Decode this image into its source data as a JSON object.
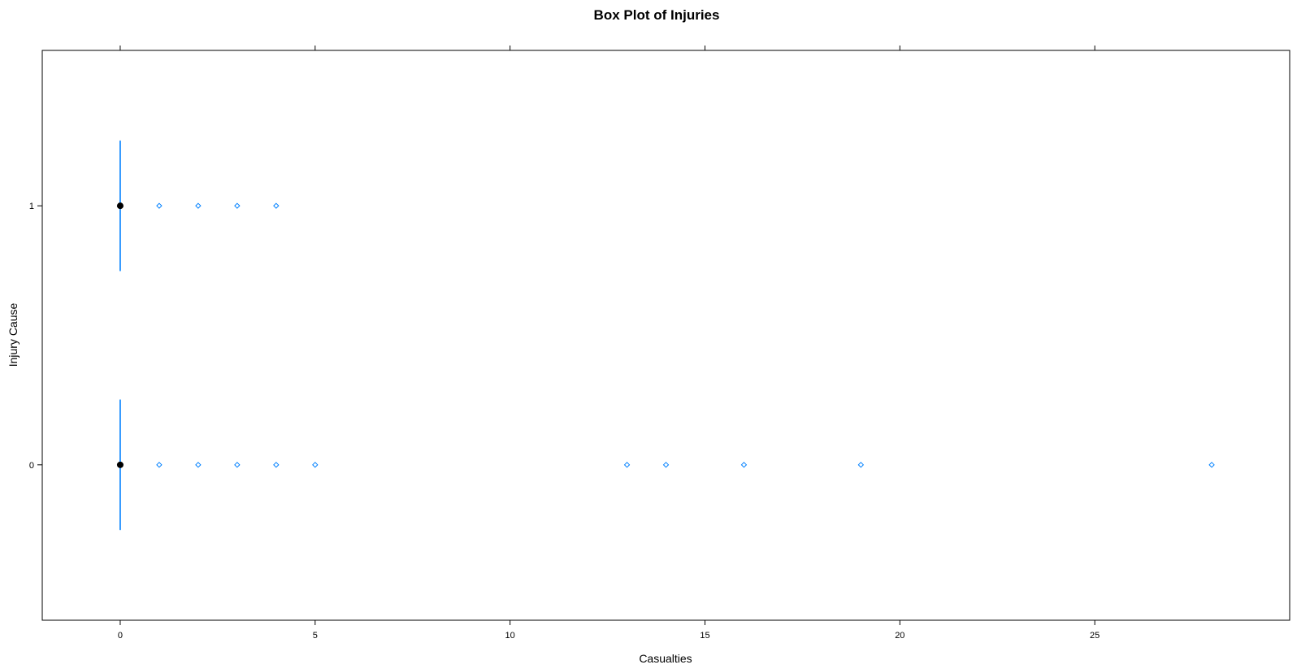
{
  "chart_data": {
    "type": "boxplot",
    "title": "Box Plot of Injuries",
    "xlabel": "Casualties",
    "ylabel": "Injury Cause",
    "xlim": [
      -2,
      30
    ],
    "xticks": [
      0,
      5,
      10,
      15,
      20,
      25
    ],
    "categories": [
      "0",
      "1"
    ],
    "grid": false,
    "colors": {
      "box": "#0080ff",
      "median": "#000000",
      "outlier": "#0080ff"
    },
    "series": [
      {
        "category": "0",
        "min": 0,
        "q1": 0,
        "median": 0,
        "q3": 0,
        "max": 0,
        "outliers": [
          1,
          2,
          3,
          4,
          5,
          13,
          14,
          16,
          19,
          28
        ]
      },
      {
        "category": "1",
        "min": 0,
        "q1": 0,
        "median": 0,
        "q3": 0,
        "max": 0,
        "outliers": [
          1,
          2,
          3,
          4
        ]
      }
    ]
  }
}
